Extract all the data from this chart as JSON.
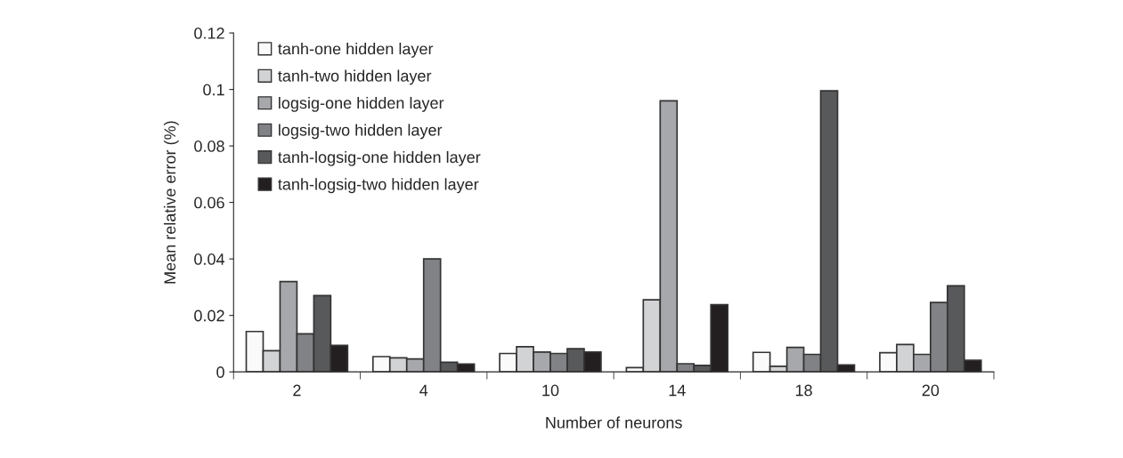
{
  "chart_data": {
    "type": "bar",
    "xlabel": "Number of neurons",
    "ylabel": "Mean relative error (%)",
    "categories": [
      "2",
      "4",
      "10",
      "14",
      "18",
      "20"
    ],
    "ylim": [
      0,
      0.12
    ],
    "yticks": [
      0,
      0.02,
      0.04,
      0.06,
      0.08,
      0.1,
      0.12
    ],
    "grid": false,
    "legend": "top left",
    "series": [
      {
        "name": "tanh-one hidden layer",
        "color": "#fafafa",
        "values": [
          0.0143,
          0.0054,
          0.0065,
          0.0015,
          0.0069,
          0.0068
        ]
      },
      {
        "name": "tanh-two hidden layer",
        "color": "#d2d3d5",
        "values": [
          0.0075,
          0.005,
          0.0089,
          0.0255,
          0.002,
          0.0097
        ]
      },
      {
        "name": "logsig-one hidden layer",
        "color": "#a7a8ab",
        "values": [
          0.032,
          0.0046,
          0.007,
          0.096,
          0.0087,
          0.0062
        ]
      },
      {
        "name": "logsig-two hidden layer",
        "color": "#818285",
        "values": [
          0.0135,
          0.04,
          0.0065,
          0.0029,
          0.0062,
          0.0246
        ]
      },
      {
        "name": "tanh-logsig-one hidden layer",
        "color": "#58595b",
        "values": [
          0.027,
          0.0034,
          0.0082,
          0.0023,
          0.0995,
          0.0305
        ]
      },
      {
        "name": "tanh-logsig-two hidden layer",
        "color": "#231f20",
        "values": [
          0.0094,
          0.0028,
          0.007,
          0.0238,
          0.0025,
          0.0041
        ]
      }
    ]
  }
}
